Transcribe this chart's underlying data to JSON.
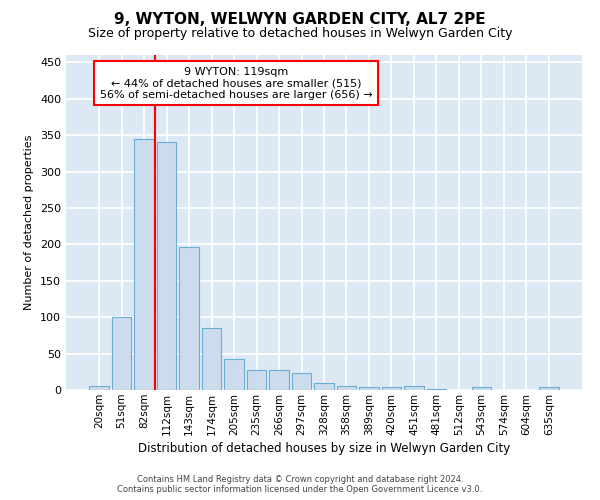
{
  "title": "9, WYTON, WELWYN GARDEN CITY, AL7 2PE",
  "subtitle": "Size of property relative to detached houses in Welwyn Garden City",
  "xlabel": "Distribution of detached houses by size in Welwyn Garden City",
  "ylabel": "Number of detached properties",
  "bar_color": "#ccdcec",
  "bar_edge_color": "#6aaed6",
  "background_color": "#dce8f4",
  "grid_color": "#ffffff",
  "vline_color": "red",
  "vline_bin_index": 3,
  "categories": [
    "20sqm",
    "51sqm",
    "82sqm",
    "112sqm",
    "143sqm",
    "174sqm",
    "205sqm",
    "235sqm",
    "266sqm",
    "297sqm",
    "328sqm",
    "358sqm",
    "389sqm",
    "420sqm",
    "451sqm",
    "481sqm",
    "512sqm",
    "543sqm",
    "574sqm",
    "604sqm",
    "635sqm"
  ],
  "values": [
    5,
    100,
    345,
    340,
    197,
    85,
    43,
    27,
    27,
    24,
    10,
    6,
    4,
    4,
    6,
    1,
    0,
    4,
    0,
    0,
    4
  ],
  "ylim": [
    0,
    460
  ],
  "yticks": [
    0,
    50,
    100,
    150,
    200,
    250,
    300,
    350,
    400,
    450
  ],
  "annotation_line1": "9 WYTON: 119sqm",
  "annotation_line2": "← 44% of detached houses are smaller (515)",
  "annotation_line3": "56% of semi-detached houses are larger (656) →",
  "footer1": "Contains HM Land Registry data © Crown copyright and database right 2024.",
  "footer2": "Contains public sector information licensed under the Open Government Licence v3.0."
}
